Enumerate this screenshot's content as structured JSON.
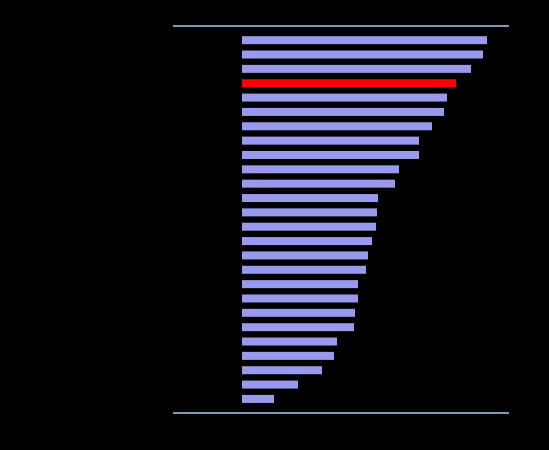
{
  "chart_data": {
    "type": "hbar",
    "categories": [
      null,
      null,
      null,
      null,
      null,
      null,
      null,
      null,
      null,
      null,
      null,
      null,
      null,
      null,
      null,
      null,
      null,
      null,
      null,
      null,
      null,
      null,
      null,
      null,
      null,
      null
    ],
    "values": [
      245,
      241,
      229,
      214,
      205,
      202,
      190,
      177,
      177,
      157,
      153,
      136,
      135,
      134,
      130,
      126,
      124,
      116,
      116,
      113,
      112,
      95,
      92,
      80,
      56,
      32
    ],
    "color": "#9999ee",
    "bar_colors": [
      "#9999ee",
      "#9999ee",
      "#9999ee",
      "#ff0000",
      "#9999ee",
      "#9999ee",
      "#9999ee",
      "#9999ee",
      "#9999ee",
      "#9999ee",
      "#9999ee",
      "#9999ee",
      "#9999ee",
      "#9999ee",
      "#9999ee",
      "#9999ee",
      "#9999ee",
      "#9999ee",
      "#9999ee",
      "#9999ee",
      "#9999ee",
      "#9999ee",
      "#9999ee",
      "#9999ee",
      "#9999ee",
      "#9999ee"
    ]
  }
}
